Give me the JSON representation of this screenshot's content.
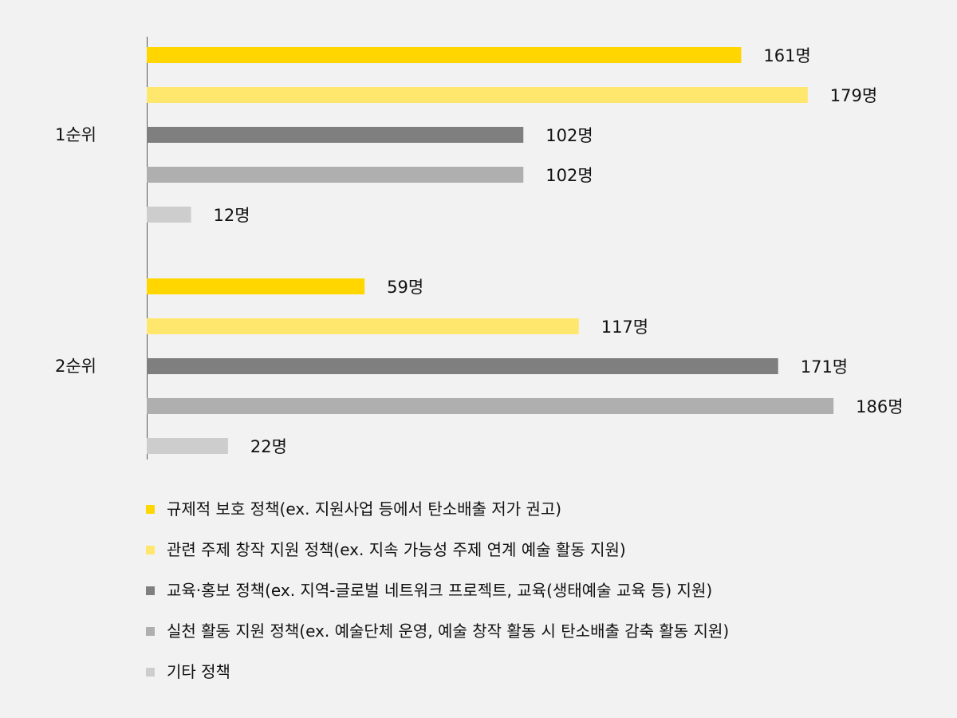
{
  "chart_data": {
    "type": "bar",
    "orientation": "horizontal",
    "categories": [
      "1순위",
      "2순위"
    ],
    "series": [
      {
        "name": "규제적 보호 정책(ex. 지원사업 등에서 탄소배출 저가 권고)",
        "color": "#ffd600",
        "values": [
          161,
          59
        ],
        "labels": [
          "161명",
          "59명"
        ]
      },
      {
        "name": "관련 주제 창작 지원 정책(ex. 지속 가능성 주제 연계 예술 활동 지원)",
        "color": "#ffe66c",
        "values": [
          179,
          117
        ],
        "labels": [
          "179명",
          "117명"
        ]
      },
      {
        "name": "교육·홍보 정책(ex. 지역-글로벌 네트워크 프로젝트, 교육(생태예술 교육 등) 지원)",
        "color": "#7f7f7f",
        "values": [
          102,
          171
        ],
        "labels": [
          "102명",
          "171명"
        ]
      },
      {
        "name": "실천 활동 지원 정책(ex. 예술단체 운영, 예술 창작 활동 시 탄소배출 감축 활동 지원)",
        "color": "#afafaf",
        "values": [
          102,
          186
        ],
        "labels": [
          "102명",
          "186명"
        ]
      },
      {
        "name": "기타 정책",
        "color": "#cdcdcd",
        "values": [
          12,
          22
        ],
        "labels": [
          "12명",
          "22명"
        ]
      }
    ],
    "value_unit": "명",
    "legend_position": "bottom",
    "grid": false
  }
}
